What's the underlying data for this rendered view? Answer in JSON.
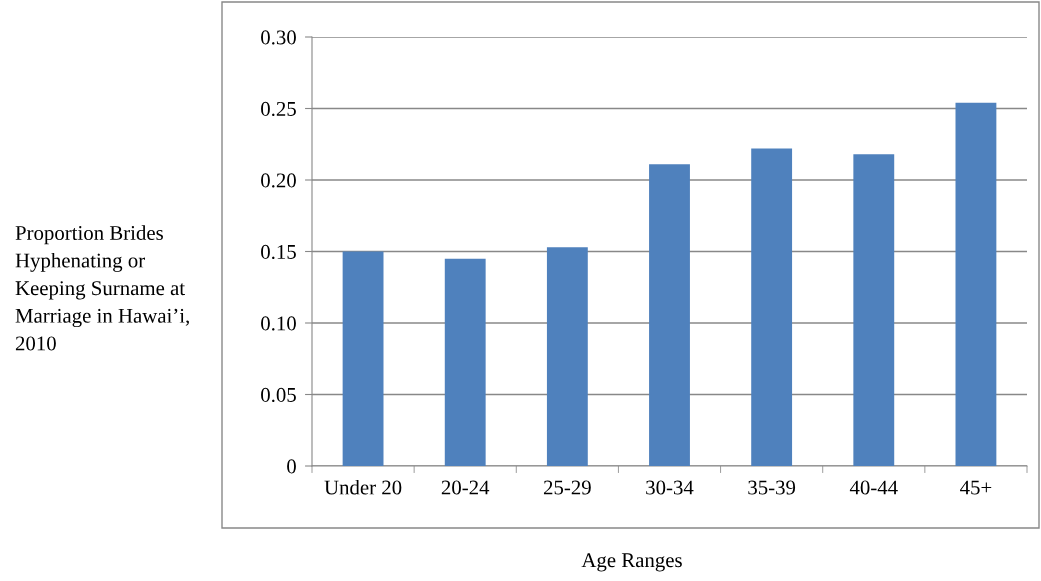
{
  "chart_data": {
    "type": "bar",
    "categories": [
      "Under 20",
      "20-24",
      "25-29",
      "30-34",
      "35-39",
      "40-44",
      "45+"
    ],
    "values": [
      0.15,
      0.145,
      0.153,
      0.211,
      0.222,
      0.218,
      0.254
    ],
    "color": "#4f81bd",
    "ylabel": "Proportion Brides Hyphenating or Keeping Surname at Marriage in Hawai’i, 2010",
    "xlabel": "Age Ranges",
    "ylim": [
      0,
      0.3
    ],
    "yticks": [
      0,
      {
        "value": 0.05,
        "label": "0.05"
      },
      {
        "value": 0.1,
        "label": "0.10"
      },
      {
        "value": 0.15,
        "label": "0.15"
      },
      {
        "value": 0.2,
        "label": "0.20"
      },
      {
        "value": 0.25,
        "label": "0.25"
      },
      {
        "value": 0.3,
        "label": "0.30"
      }
    ],
    "grid": "y",
    "legend": false
  }
}
